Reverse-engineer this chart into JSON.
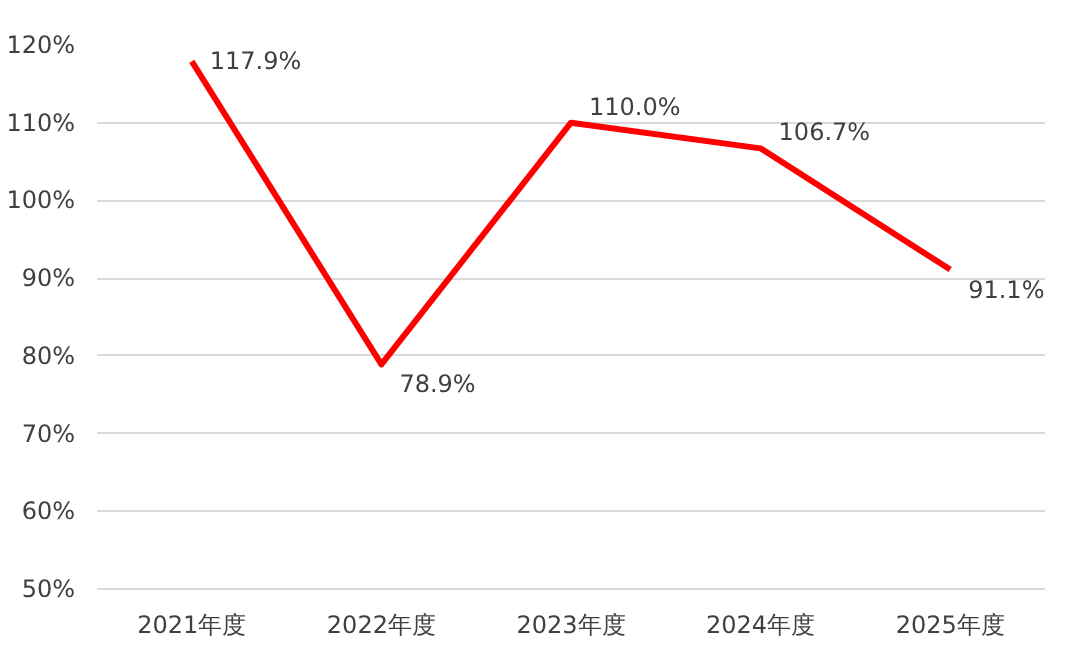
{
  "chart_data": {
    "type": "line",
    "categories": [
      "2021年度",
      "2022年度",
      "2023年度",
      "2024年度",
      "2025年度"
    ],
    "series": [
      {
        "color": "#ff0000",
        "values": [
          117.9,
          78.9,
          110.0,
          106.7,
          91.1
        ],
        "value_labels": [
          "117.9%",
          "78.9%",
          "110.0%",
          "106.7%",
          "91.1%"
        ]
      }
    ],
    "ylim": [
      50,
      120
    ],
    "yticks": [
      {
        "value": 50,
        "label": "50%"
      },
      {
        "value": 60,
        "label": "60%"
      },
      {
        "value": 70,
        "label": "70%"
      },
      {
        "value": 80,
        "label": "80%"
      },
      {
        "value": 90,
        "label": "90%"
      },
      {
        "value": 100,
        "label": "100%"
      },
      {
        "value": 110,
        "label": "110%"
      },
      {
        "value": 120,
        "label": "120%"
      }
    ],
    "grid": "y",
    "marker": "none",
    "line_style": "solid"
  }
}
